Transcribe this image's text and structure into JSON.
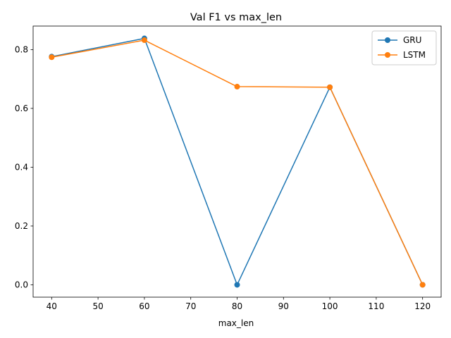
{
  "chart_data": {
    "type": "line",
    "title": "Val F1 vs max_len",
    "xlabel": "max_len",
    "ylabel": "",
    "x": [
      40,
      60,
      80,
      100,
      120
    ],
    "xlim": [
      36,
      124
    ],
    "ylim": [
      -0.042,
      0.88
    ],
    "xticks": [
      40,
      50,
      60,
      70,
      80,
      90,
      100,
      110,
      120
    ],
    "yticks": [
      0.0,
      0.2,
      0.4,
      0.6,
      0.8
    ],
    "ytick_labels": [
      "0.0",
      "0.2",
      "0.4",
      "0.6",
      "0.8"
    ],
    "grid": false,
    "legend_position": "top-right",
    "series": [
      {
        "name": "GRU",
        "color": "#1f77b4",
        "values": [
          0.776,
          0.838,
          0.0,
          0.672,
          0.0
        ]
      },
      {
        "name": "LSTM",
        "color": "#ff7f0e",
        "values": [
          0.774,
          0.832,
          0.674,
          0.672,
          0.0
        ]
      }
    ]
  }
}
